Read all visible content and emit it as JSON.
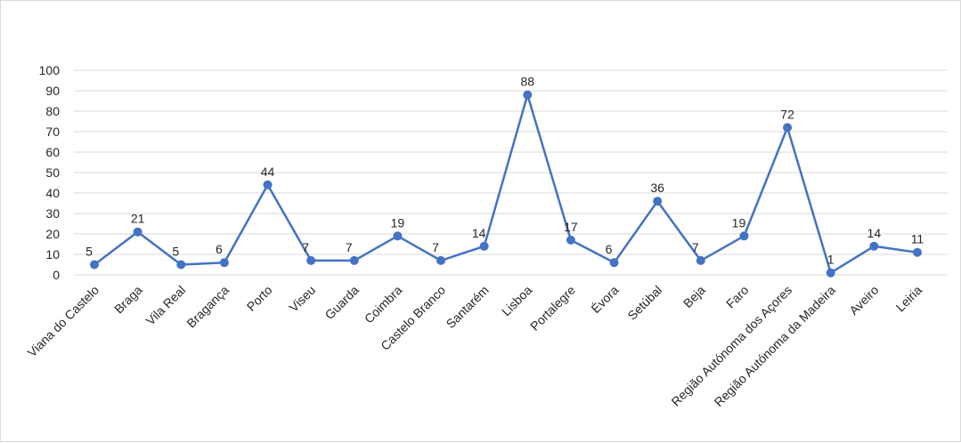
{
  "chart_data": {
    "type": "line",
    "title": "",
    "xlabel": "",
    "ylabel": "",
    "categories": [
      "Viana do Castelo",
      "Braga",
      "Vila Real",
      "Bragança",
      "Porto",
      "Viseu",
      "Guarda",
      "Coimbra",
      "Castelo Branco",
      "Santarém",
      "Lisboa",
      "Portalegre",
      "Évora",
      "Setúbal",
      "Beja",
      "Faro",
      "Região Autónoma dos Açores",
      "Região Autónoma da Madeira",
      "Aveiro",
      "Leiria"
    ],
    "series": [
      {
        "values": [
          5,
          21,
          5,
          6,
          44,
          7,
          7,
          19,
          7,
          14,
          88,
          17,
          6,
          36,
          7,
          19,
          72,
          1,
          14,
          11
        ]
      }
    ],
    "ylim": [
      0,
      100
    ],
    "yticks": [
      0,
      10,
      20,
      30,
      40,
      50,
      60,
      70,
      80,
      90,
      100
    ],
    "grid": true,
    "legend": "none",
    "data_labels": true,
    "colors": {
      "series": "#4472c4",
      "grid": "#d9d9d9",
      "text": "#262626"
    }
  }
}
